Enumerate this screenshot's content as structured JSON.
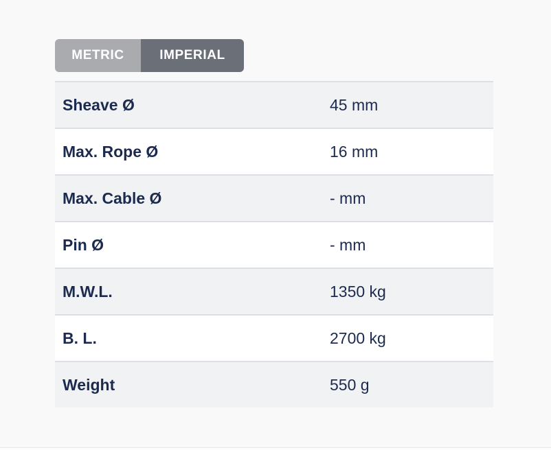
{
  "colors": {
    "page_background": "#f9f9fa",
    "metric_button": "#a9abaf",
    "imperial_button": "#6b7078",
    "row_alt_background": "#f1f2f4",
    "row_background": "#ffffff",
    "row_border": "#dcdfe5",
    "text": "#1b2a4e",
    "toggle_text": "#ffffff"
  },
  "toggle": {
    "metric_label": "METRIC",
    "imperial_label": "IMPERIAL",
    "selected": "METRIC"
  },
  "table": {
    "rows": [
      {
        "label": "Sheave Ø",
        "value": "45 mm"
      },
      {
        "label": "Max. Rope Ø",
        "value": "16 mm"
      },
      {
        "label": "Max. Cable Ø",
        "value": "- mm"
      },
      {
        "label": "Pin Ø",
        "value": "- mm"
      },
      {
        "label": "M.W.L.",
        "value": "1350 kg"
      },
      {
        "label": "B. L.",
        "value": "2700 kg"
      },
      {
        "label": "Weight",
        "value": "550 g"
      }
    ]
  }
}
